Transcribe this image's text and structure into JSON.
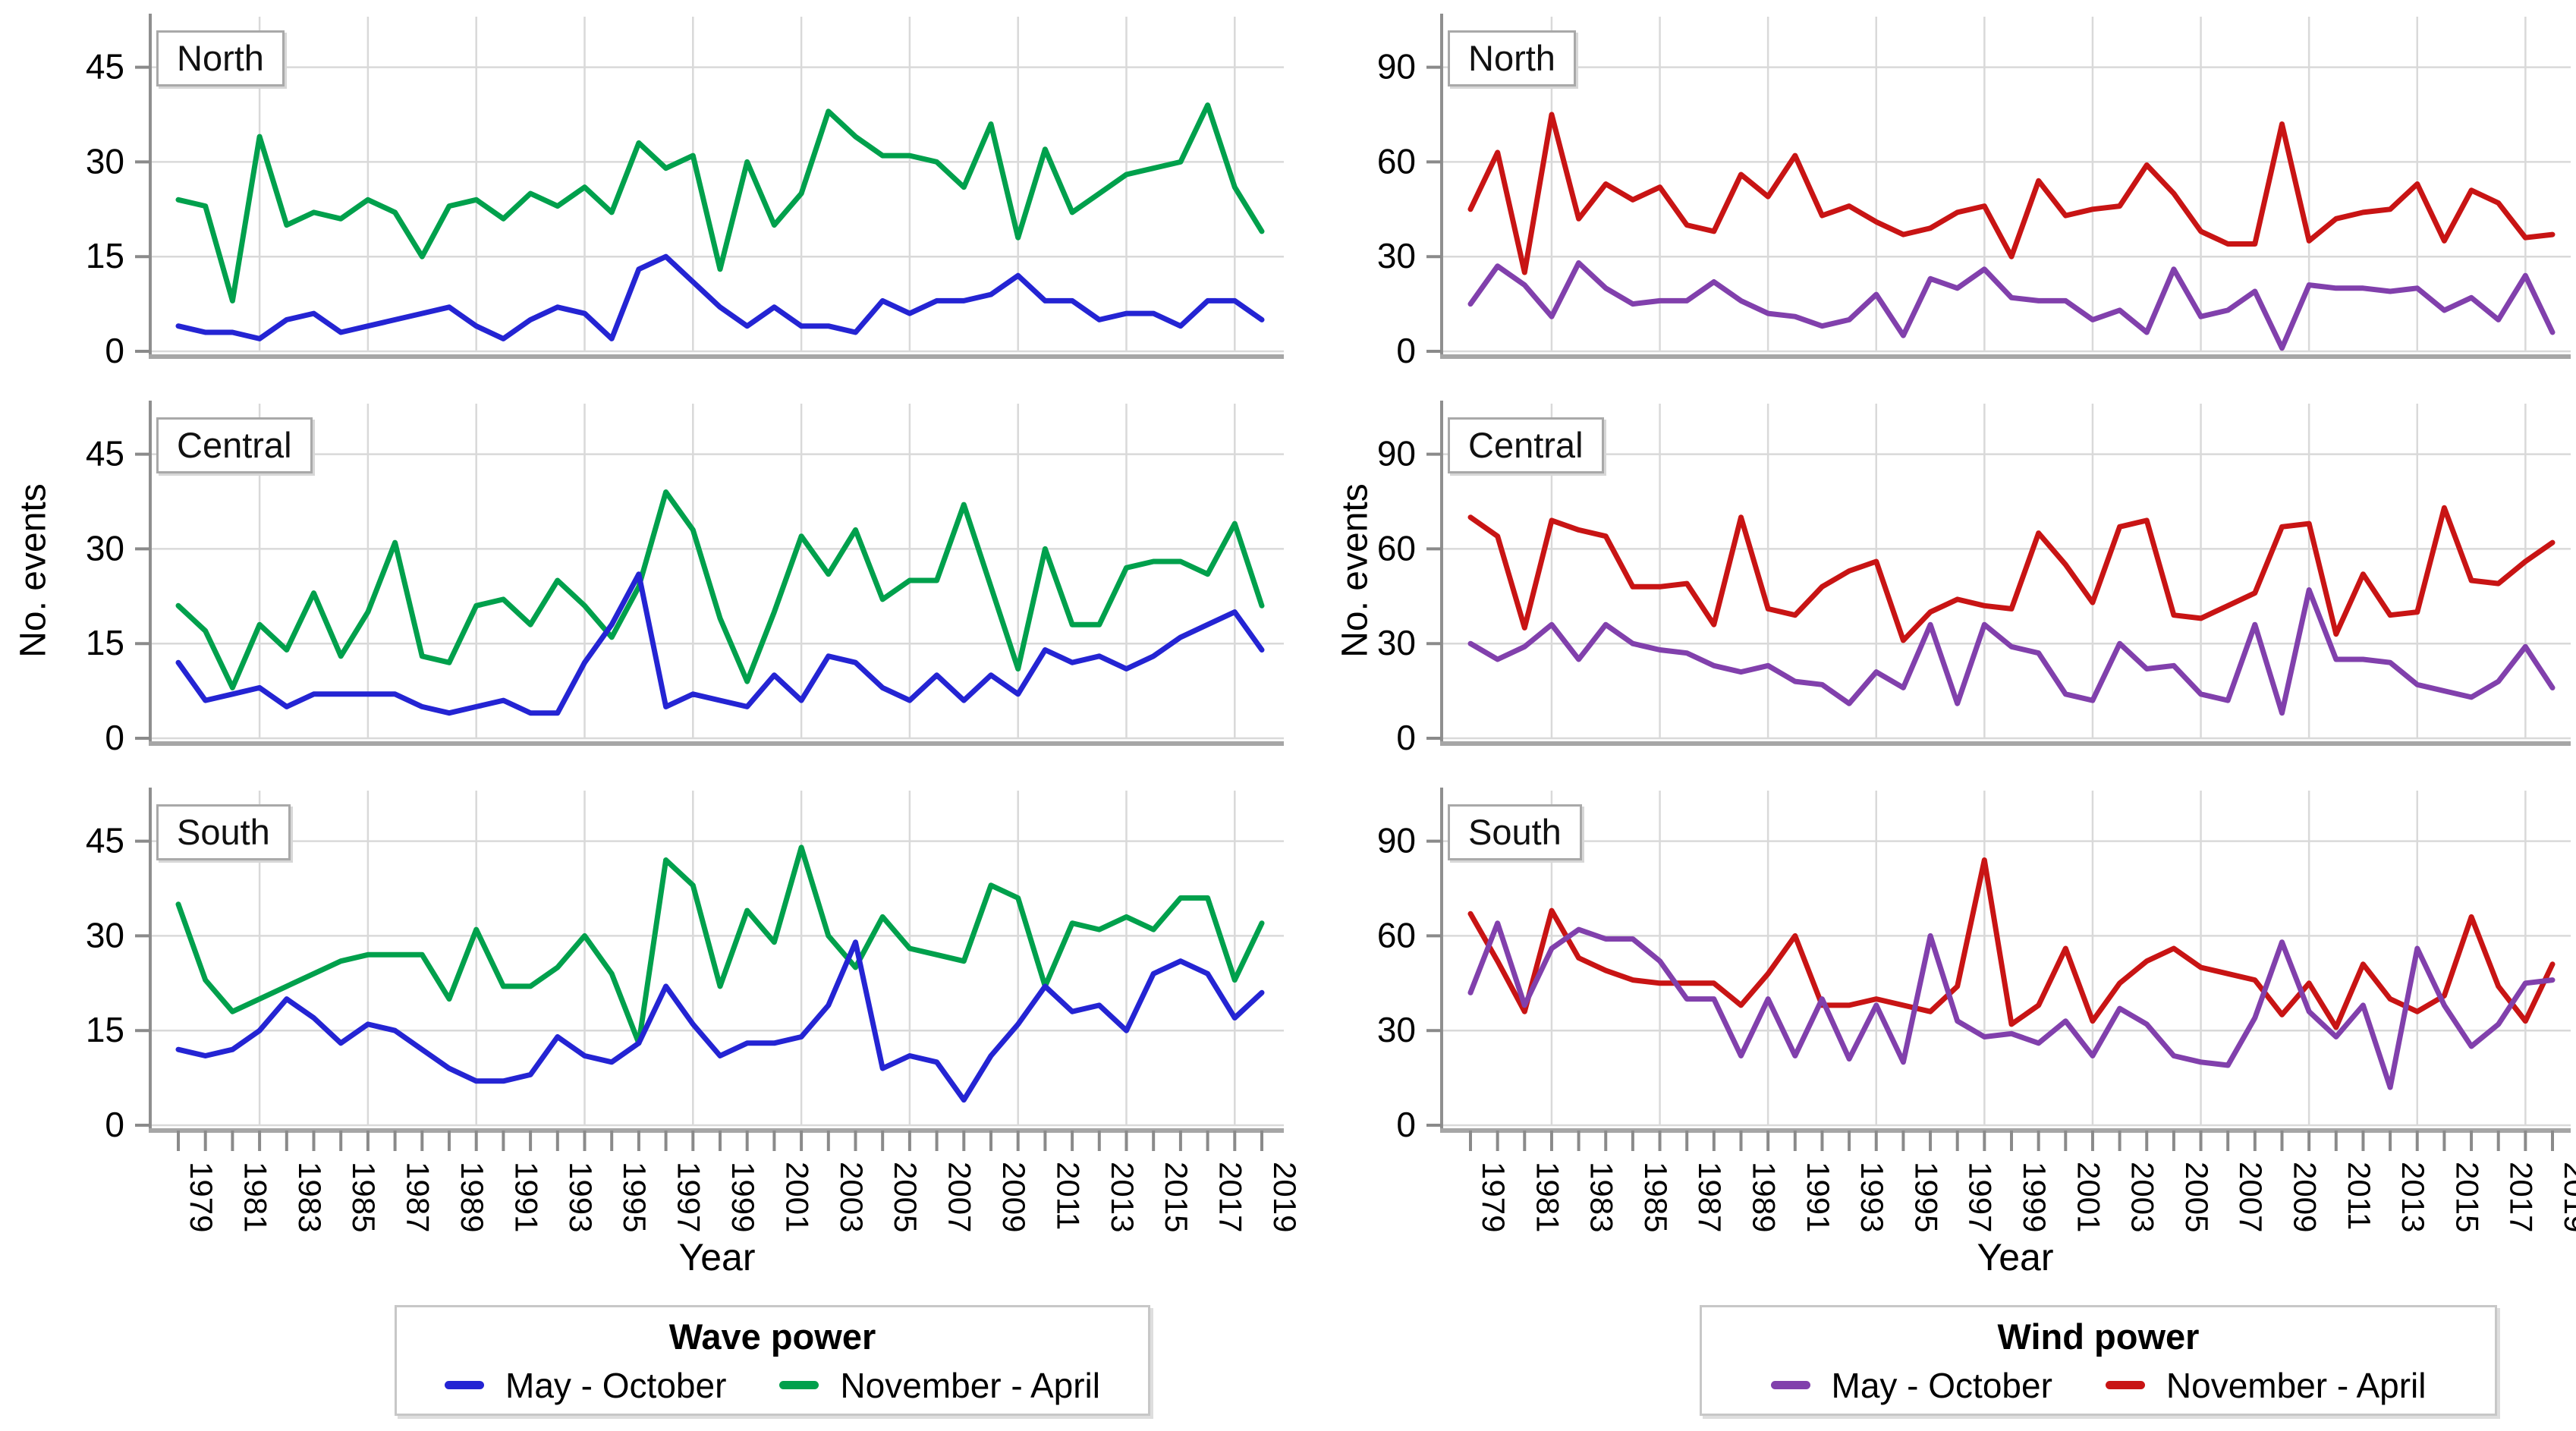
{
  "chart_data": {
    "type": "line",
    "description": "Faceted time-series: number of wave-power and wind-power events per season, three regions",
    "x": {
      "axis_label": "Year",
      "start": 1979,
      "end": 2019,
      "tick_labels": [
        1979,
        1981,
        1983,
        1985,
        1987,
        1989,
        1991,
        1993,
        1995,
        1997,
        1999,
        2001,
        2003,
        2005,
        2007,
        2009,
        2011,
        2013,
        2015,
        2017,
        2019
      ],
      "grid_years": [
        1982,
        1986,
        1990,
        1994,
        1998,
        2002,
        2006,
        2010,
        2014,
        2018
      ]
    },
    "columns": [
      {
        "key": "wave",
        "legend_title": "Wave power",
        "ylabel": "No. events",
        "xlabel": "Year",
        "yticks": [
          0,
          15,
          30,
          45
        ],
        "ytop": 53,
        "series": [
          {
            "key": "may",
            "name": "May - October",
            "color": "#2424D3"
          },
          {
            "key": "nov",
            "name": "November - April",
            "color": "#00A04C"
          }
        ],
        "panels": [
          {
            "label": "North",
            "may": [
              4,
              3,
              3,
              2,
              5,
              6,
              3,
              4,
              5,
              6,
              7,
              4,
              2,
              5,
              7,
              6,
              2,
              13,
              15,
              11,
              7,
              4,
              7,
              4,
              4,
              3,
              8,
              6,
              8,
              8,
              9,
              12,
              8,
              8,
              5,
              6,
              6,
              4,
              8,
              8,
              5
            ],
            "nov": [
              24,
              23,
              8,
              34,
              20,
              22,
              21,
              24,
              22,
              15,
              23,
              24,
              21,
              25,
              23,
              26,
              22,
              33,
              29,
              31,
              13,
              30,
              20,
              25,
              38,
              34,
              31,
              31,
              30,
              26,
              36,
              18,
              32,
              22,
              25,
              28,
              29,
              30,
              39,
              26,
              19
            ]
          },
          {
            "label": "Central",
            "may": [
              12,
              6,
              7,
              8,
              5,
              7,
              7,
              7,
              7,
              5,
              4,
              5,
              6,
              4,
              4,
              12,
              18,
              26,
              5,
              7,
              6,
              5,
              10,
              6,
              13,
              12,
              8,
              6,
              10,
              6,
              10,
              7,
              14,
              12,
              13,
              11,
              13,
              16,
              18,
              20,
              14
            ],
            "nov": [
              21,
              17,
              8,
              18,
              14,
              23,
              13,
              20,
              31,
              13,
              12,
              21,
              22,
              18,
              25,
              21,
              16,
              24,
              39,
              33,
              19,
              9,
              20,
              32,
              26,
              33,
              22,
              25,
              25,
              37,
              24,
              11,
              30,
              18,
              18,
              27,
              28,
              28,
              26,
              34,
              21
            ]
          },
          {
            "label": "South",
            "may": [
              12,
              11,
              12,
              15,
              20,
              17,
              13,
              16,
              15,
              12,
              9,
              7,
              7,
              8,
              14,
              11,
              10,
              13,
              22,
              16,
              11,
              13,
              13,
              14,
              19,
              29,
              9,
              11,
              10,
              4,
              11,
              16,
              22,
              18,
              19,
              15,
              24,
              26,
              24,
              17,
              21
            ],
            "nov": [
              35,
              23,
              18,
              20,
              22,
              24,
              26,
              27,
              27,
              27,
              20,
              31,
              22,
              22,
              25,
              30,
              24,
              13,
              42,
              38,
              22,
              34,
              29,
              44,
              30,
              25,
              33,
              28,
              27,
              26,
              38,
              36,
              22,
              32,
              31,
              33,
              31,
              36,
              36,
              23,
              32
            ]
          }
        ]
      },
      {
        "key": "wind",
        "legend_title": "Wind power",
        "ylabel": "No. events",
        "xlabel": "Year",
        "yticks": [
          0,
          30,
          60,
          90
        ],
        "ytop": 106,
        "series": [
          {
            "key": "may",
            "name": "May - October",
            "color": "#8140AC"
          },
          {
            "key": "nov",
            "name": "November - April",
            "color": "#C81414"
          }
        ],
        "panels": [
          {
            "label": "North",
            "may": [
              15,
              27,
              21,
              11,
              28,
              20,
              15,
              16,
              16,
              22,
              16,
              12,
              11,
              8,
              10,
              18,
              5,
              23,
              20,
              26,
              17,
              16,
              16,
              10,
              13,
              6,
              26,
              11,
              13,
              19,
              1,
              21,
              20,
              20,
              19,
              20,
              13,
              17,
              10,
              24,
              6
            ],
            "nov": [
              45,
              63,
              25,
              75,
              42,
              53,
              48,
              52,
              40,
              38,
              56,
              49,
              62,
              43,
              46,
              41,
              37,
              39,
              44,
              46,
              30,
              54,
              43,
              45,
              46,
              59,
              50,
              38,
              34,
              34,
              72,
              35,
              42,
              44,
              45,
              53,
              35,
              51,
              47,
              36,
              37
            ]
          },
          {
            "label": "Central",
            "may": [
              30,
              25,
              29,
              36,
              25,
              36,
              30,
              28,
              27,
              23,
              21,
              23,
              18,
              17,
              11,
              21,
              16,
              36,
              11,
              36,
              29,
              27,
              14,
              12,
              30,
              22,
              23,
              14,
              12,
              36,
              8,
              47,
              25,
              25,
              24,
              17,
              15,
              13,
              18,
              29,
              16
            ],
            "nov": [
              70,
              64,
              35,
              69,
              66,
              64,
              48,
              48,
              49,
              36,
              70,
              41,
              39,
              48,
              53,
              56,
              31,
              40,
              44,
              42,
              41,
              65,
              55,
              43,
              67,
              69,
              39,
              38,
              42,
              46,
              67,
              68,
              33,
              52,
              39,
              40,
              73,
              50,
              49,
              56,
              62
            ]
          },
          {
            "label": "South",
            "may": [
              42,
              64,
              38,
              56,
              62,
              59,
              59,
              52,
              40,
              40,
              22,
              40,
              22,
              40,
              21,
              38,
              20,
              60,
              33,
              28,
              29,
              26,
              33,
              22,
              37,
              32,
              22,
              20,
              19,
              34,
              58,
              36,
              28,
              38,
              12,
              56,
              38,
              25,
              32,
              45,
              46
            ],
            "nov": [
              67,
              52,
              36,
              68,
              53,
              49,
              46,
              45,
              45,
              45,
              38,
              48,
              60,
              38,
              38,
              40,
              38,
              36,
              44,
              84,
              32,
              38,
              56,
              33,
              45,
              52,
              56,
              50,
              48,
              46,
              35,
              45,
              31,
              51,
              40,
              36,
              41,
              66,
              44,
              33,
              51
            ]
          }
        ]
      }
    ]
  }
}
